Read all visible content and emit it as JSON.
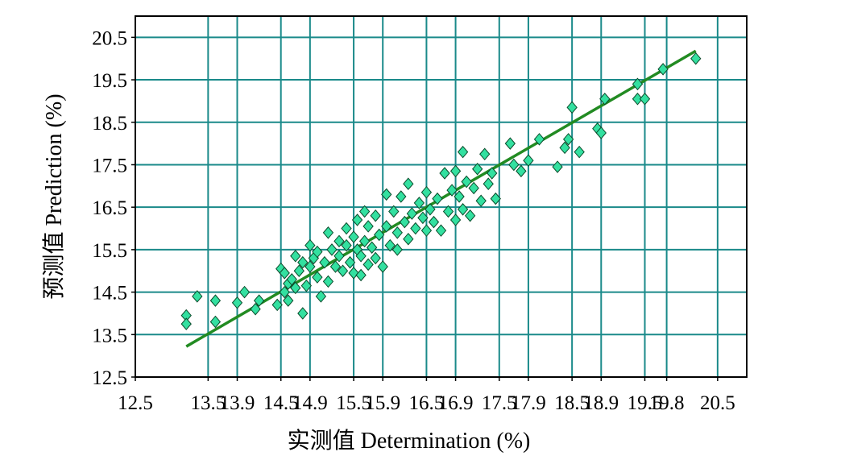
{
  "chart_data": {
    "type": "scatter",
    "title": "",
    "xlabel": "实测值 Determination (%)",
    "ylabel": "预测值 Prediction (%)",
    "xlim": [
      12.5,
      20.9
    ],
    "ylim": [
      12.5,
      21.0
    ],
    "x_ticks": [
      12.5,
      13.5,
      13.9,
      14.5,
      14.9,
      15.5,
      15.9,
      16.5,
      16.9,
      17.5,
      17.9,
      18.5,
      18.9,
      19.5,
      19.8,
      20.5
    ],
    "x_tick_labels": [
      "12.5",
      "13.5",
      "13.9",
      "14.5",
      "14.9",
      "15.5",
      "15.9",
      "16.5",
      "16.9",
      "17.5",
      "17.9",
      "18.5",
      "18.9",
      "19.5",
      "19.8",
      "20.5"
    ],
    "y_ticks": [
      12.5,
      13.5,
      14.5,
      15.5,
      16.5,
      17.5,
      18.5,
      19.5,
      20.5
    ],
    "y_tick_labels": [
      "12.5",
      "13.5",
      "14.5",
      "15.5",
      "16.5",
      "17.5",
      "18.5",
      "19.5",
      "20.5"
    ],
    "grid": true,
    "colors": {
      "grid": "#1a8a8a",
      "marker_fill": "#33e0a0",
      "marker_stroke": "#0a4a2a",
      "line": "#228B22",
      "frame": "#000000"
    },
    "fit_line": {
      "x": [
        13.2,
        20.2
      ],
      "y": [
        13.22,
        20.18
      ]
    },
    "series": [
      {
        "marker": "diamond",
        "points": [
          [
            13.2,
            13.95
          ],
          [
            13.2,
            13.75
          ],
          [
            13.35,
            14.4
          ],
          [
            13.6,
            14.3
          ],
          [
            13.6,
            13.8
          ],
          [
            13.9,
            14.25
          ],
          [
            14.0,
            14.5
          ],
          [
            14.2,
            14.3
          ],
          [
            14.15,
            14.1
          ],
          [
            14.45,
            14.2
          ],
          [
            14.5,
            15.05
          ],
          [
            14.55,
            14.95
          ],
          [
            14.55,
            14.5
          ],
          [
            14.6,
            14.7
          ],
          [
            14.6,
            14.3
          ],
          [
            14.65,
            14.8
          ],
          [
            14.7,
            15.35
          ],
          [
            14.7,
            14.6
          ],
          [
            14.75,
            15.0
          ],
          [
            14.8,
            14.0
          ],
          [
            14.8,
            15.2
          ],
          [
            14.85,
            14.65
          ],
          [
            14.9,
            15.6
          ],
          [
            14.9,
            15.1
          ],
          [
            14.95,
            15.3
          ],
          [
            15.0,
            15.45
          ],
          [
            15.0,
            14.85
          ],
          [
            15.05,
            14.4
          ],
          [
            15.1,
            15.2
          ],
          [
            15.15,
            15.9
          ],
          [
            15.15,
            14.75
          ],
          [
            15.2,
            15.5
          ],
          [
            15.25,
            15.1
          ],
          [
            15.3,
            15.7
          ],
          [
            15.3,
            15.35
          ],
          [
            15.35,
            15.0
          ],
          [
            15.4,
            16.0
          ],
          [
            15.4,
            15.6
          ],
          [
            15.45,
            15.2
          ],
          [
            15.5,
            14.95
          ],
          [
            15.5,
            15.8
          ],
          [
            15.55,
            16.2
          ],
          [
            15.55,
            15.5
          ],
          [
            15.6,
            15.35
          ],
          [
            15.6,
            14.9
          ],
          [
            15.65,
            16.4
          ],
          [
            15.65,
            15.7
          ],
          [
            15.7,
            15.15
          ],
          [
            15.7,
            16.05
          ],
          [
            15.75,
            15.55
          ],
          [
            15.8,
            16.3
          ],
          [
            15.8,
            15.3
          ],
          [
            15.85,
            15.85
          ],
          [
            15.9,
            15.1
          ],
          [
            15.95,
            16.8
          ],
          [
            15.95,
            16.05
          ],
          [
            16.0,
            15.6
          ],
          [
            16.05,
            16.4
          ],
          [
            16.1,
            15.9
          ],
          [
            16.1,
            15.5
          ],
          [
            16.15,
            16.75
          ],
          [
            16.2,
            16.15
          ],
          [
            16.25,
            15.75
          ],
          [
            16.25,
            17.05
          ],
          [
            16.3,
            16.35
          ],
          [
            16.35,
            16.0
          ],
          [
            16.4,
            16.6
          ],
          [
            16.45,
            16.25
          ],
          [
            16.5,
            15.95
          ],
          [
            16.5,
            16.85
          ],
          [
            16.55,
            16.45
          ],
          [
            16.6,
            16.15
          ],
          [
            16.65,
            16.7
          ],
          [
            16.7,
            15.95
          ],
          [
            16.75,
            17.3
          ],
          [
            16.8,
            16.4
          ],
          [
            16.85,
            16.9
          ],
          [
            16.9,
            16.2
          ],
          [
            16.9,
            17.35
          ],
          [
            16.95,
            16.75
          ],
          [
            17.0,
            17.8
          ],
          [
            17.0,
            16.45
          ],
          [
            17.05,
            17.1
          ],
          [
            17.1,
            16.3
          ],
          [
            17.15,
            16.95
          ],
          [
            17.2,
            17.4
          ],
          [
            17.25,
            16.65
          ],
          [
            17.3,
            17.75
          ],
          [
            17.35,
            17.05
          ],
          [
            17.4,
            17.3
          ],
          [
            17.45,
            16.7
          ],
          [
            17.65,
            18.0
          ],
          [
            17.7,
            17.5
          ],
          [
            17.8,
            17.35
          ],
          [
            17.9,
            17.6
          ],
          [
            18.05,
            18.1
          ],
          [
            18.3,
            17.45
          ],
          [
            18.4,
            17.9
          ],
          [
            18.45,
            18.1
          ],
          [
            18.5,
            18.85
          ],
          [
            18.6,
            17.8
          ],
          [
            18.85,
            18.35
          ],
          [
            18.9,
            18.25
          ],
          [
            18.95,
            19.05
          ],
          [
            19.4,
            19.4
          ],
          [
            19.4,
            19.05
          ],
          [
            19.5,
            19.05
          ],
          [
            19.75,
            19.75
          ],
          [
            20.2,
            20.0
          ]
        ]
      }
    ]
  }
}
